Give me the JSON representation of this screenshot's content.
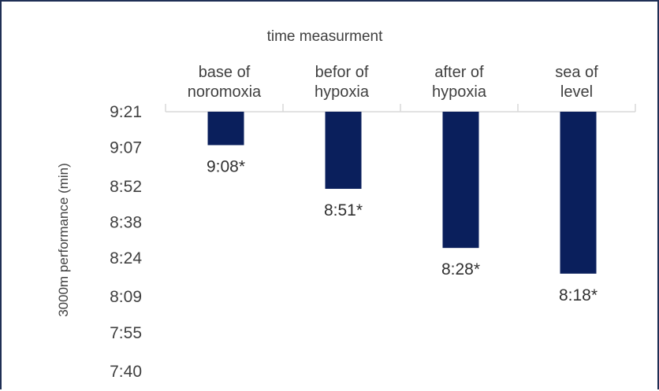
{
  "chart_data": {
    "type": "bar",
    "orientation": "vertical",
    "x_axis_position": "top",
    "categories": [
      "base of noromoxia",
      "befor of hypoxia",
      "after of hypoxia",
      "sea of level"
    ],
    "category_lines": [
      [
        "base of",
        "noromoxia"
      ],
      [
        "befor of",
        "hypoxia"
      ],
      [
        "after of",
        "hypoxia"
      ],
      [
        "sea of",
        "level"
      ]
    ],
    "values_seconds": [
      548,
      531,
      508,
      498
    ],
    "data_labels": [
      "9:08*",
      "8:51*",
      "8:28*",
      "8:18*"
    ],
    "xlabel": "time measurment",
    "ylabel": "3000m performance (min)",
    "y_ticks": [
      "9:21",
      "9:07",
      "8:52",
      "8:38",
      "8:24",
      "8:09",
      "7:55",
      "7:40"
    ],
    "y_tick_seconds": [
      561,
      547,
      532,
      518,
      504,
      489,
      475,
      460
    ],
    "ylim_seconds": [
      460,
      561
    ],
    "bar_color": "#0a1f5c",
    "grid": false
  }
}
